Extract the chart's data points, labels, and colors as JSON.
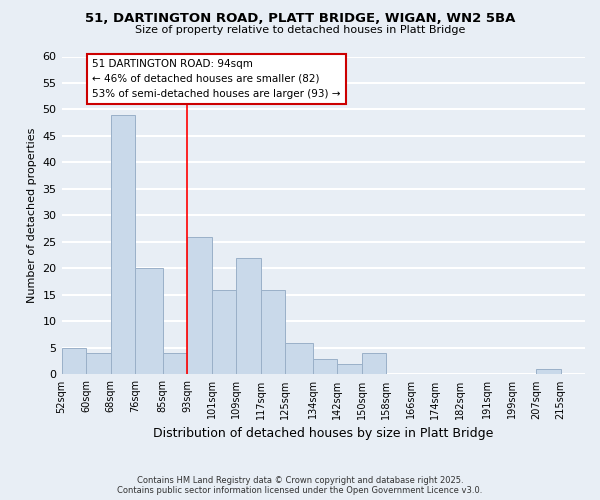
{
  "title": "51, DARTINGTON ROAD, PLATT BRIDGE, WIGAN, WN2 5BA",
  "subtitle": "Size of property relative to detached houses in Platt Bridge",
  "xlabel": "Distribution of detached houses by size in Platt Bridge",
  "ylabel": "Number of detached properties",
  "bin_labels": [
    "52sqm",
    "60sqm",
    "68sqm",
    "76sqm",
    "85sqm",
    "93sqm",
    "101sqm",
    "109sqm",
    "117sqm",
    "125sqm",
    "134sqm",
    "142sqm",
    "150sqm",
    "158sqm",
    "166sqm",
    "174sqm",
    "182sqm",
    "191sqm",
    "199sqm",
    "207sqm",
    "215sqm"
  ],
  "bin_edges": [
    52,
    60,
    68,
    76,
    85,
    93,
    101,
    109,
    117,
    125,
    134,
    142,
    150,
    158,
    166,
    174,
    182,
    191,
    199,
    207,
    215
  ],
  "bar_heights": [
    5,
    4,
    49,
    20,
    4,
    26,
    16,
    22,
    16,
    6,
    3,
    2,
    4,
    0,
    0,
    0,
    0,
    0,
    0,
    1
  ],
  "bar_color": "#c9d9ea",
  "bar_edge_color": "#9ab0c8",
  "vline_x": 93,
  "vline_color": "red",
  "annotation_text": "51 DARTINGTON ROAD: 94sqm\n← 46% of detached houses are smaller (82)\n53% of semi-detached houses are larger (93) →",
  "annotation_box_color": "white",
  "annotation_box_edge": "#cc0000",
  "ylim": [
    0,
    60
  ],
  "yticks": [
    0,
    5,
    10,
    15,
    20,
    25,
    30,
    35,
    40,
    45,
    50,
    55,
    60
  ],
  "background_color": "#e8eef5",
  "grid_color": "white",
  "footer_line1": "Contains HM Land Registry data © Crown copyright and database right 2025.",
  "footer_line2": "Contains public sector information licensed under the Open Government Licence v3.0."
}
